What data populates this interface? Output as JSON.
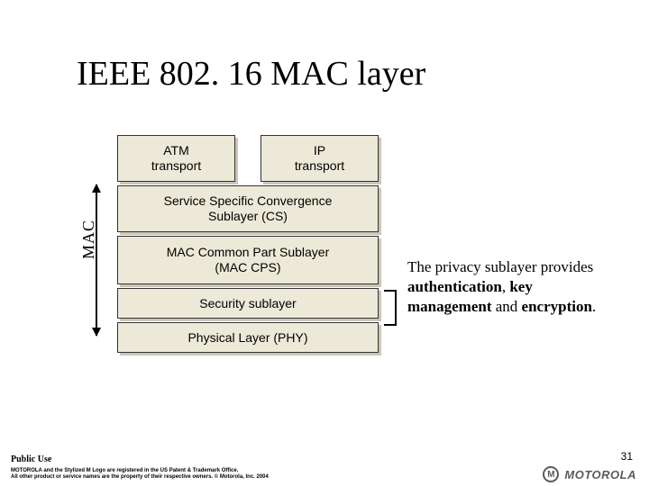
{
  "title": "IEEE 802. 16 MAC layer",
  "mac_label": "MAC",
  "boxes": {
    "atm": "ATM\ntransport",
    "ip": "IP\ntransport",
    "cs": "Service Specific Convergence\nSublayer (CS)",
    "cps": "MAC Common Part Sublayer\n(MAC CPS)",
    "sec": "Security sublayer",
    "phy": "Physical Layer (PHY)"
  },
  "note": {
    "pre": "The privacy sublayer provides ",
    "auth": "authentication",
    "mid1": ", ",
    "km": "key management",
    "mid2": " and ",
    "enc": "encryption",
    "post": "."
  },
  "footer": {
    "classification": "Public Use",
    "legal1": "MOTOROLA and the Stylized M Logo are registered in the US Patent & Trademark Office.",
    "legal2": "All other product or service names are the property of their respective owners. © Motorola, Inc. 2004",
    "page": "31",
    "logo_text": "MOTOROLA"
  },
  "colors": {
    "box_bg": "#ece9d8",
    "box_border": "#333333",
    "box_shadow": "#c8c6ba",
    "background": "#ffffff",
    "text": "#000000",
    "logo": "#5b5b5b"
  },
  "layout": {
    "slide_w": 720,
    "slide_h": 540,
    "title_fontsize": 38,
    "box_fontsize": 14,
    "note_fontsize": 17,
    "mac_arrow_height": 168
  }
}
